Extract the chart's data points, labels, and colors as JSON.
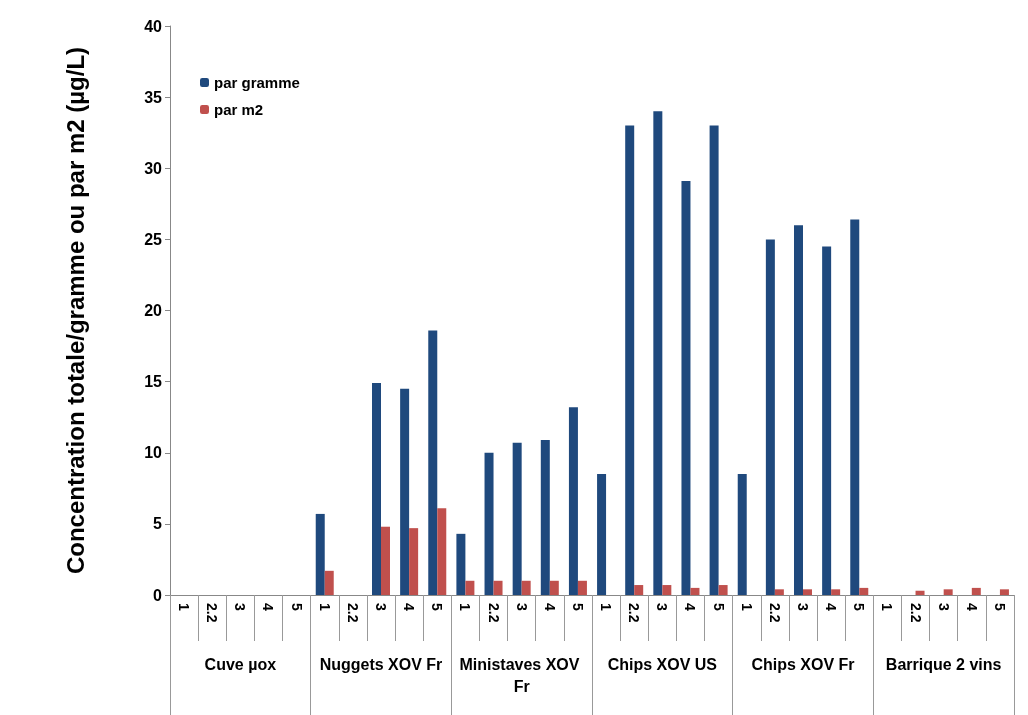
{
  "chart_data": {
    "type": "bar",
    "ylabel": "Concentration totale/gramme ou par m2 (µg/L)",
    "categories": [
      "1",
      "2.2",
      "3",
      "4",
      "5",
      "1",
      "2.2",
      "3",
      "4",
      "5",
      "1",
      "2.2",
      "3",
      "4",
      "5",
      "1",
      "2.2",
      "3",
      "4",
      "5",
      "1",
      "2.2",
      "3",
      "4",
      "5",
      "1",
      "2.2",
      "3",
      "4",
      "5"
    ],
    "annotations": [
      "Cuve µox",
      "Nuggets XOV Fr",
      "Ministaves XOV Fr",
      "Chips XOV US",
      "Chips XOV Fr",
      "Barrique 2 vins"
    ],
    "series": [
      {
        "name": "par gramme",
        "color": "#1f497d",
        "values": [
          null,
          null,
          null,
          null,
          null,
          5.7,
          null,
          14.9,
          14.5,
          18.6,
          4.3,
          10.0,
          10.7,
          10.9,
          13.2,
          8.5,
          33.0,
          34.0,
          29.1,
          33.0,
          8.5,
          25.0,
          26.0,
          24.5,
          26.4,
          null,
          null,
          null,
          null,
          null
        ]
      },
      {
        "name": "par m2",
        "color": "#c0504d",
        "values": [
          null,
          null,
          null,
          null,
          null,
          1.7,
          null,
          4.8,
          4.7,
          6.1,
          1.0,
          1.0,
          1.0,
          1.0,
          1.0,
          null,
          0.7,
          0.7,
          0.5,
          0.7,
          null,
          0.4,
          0.4,
          0.4,
          0.5,
          null,
          0.3,
          0.4,
          0.5,
          0.4
        ]
      }
    ],
    "ylim": [
      0,
      40
    ],
    "yticks": [
      0,
      5,
      10,
      15,
      20,
      25,
      30,
      35,
      40
    ],
    "legend": "top left",
    "grid": false
  }
}
